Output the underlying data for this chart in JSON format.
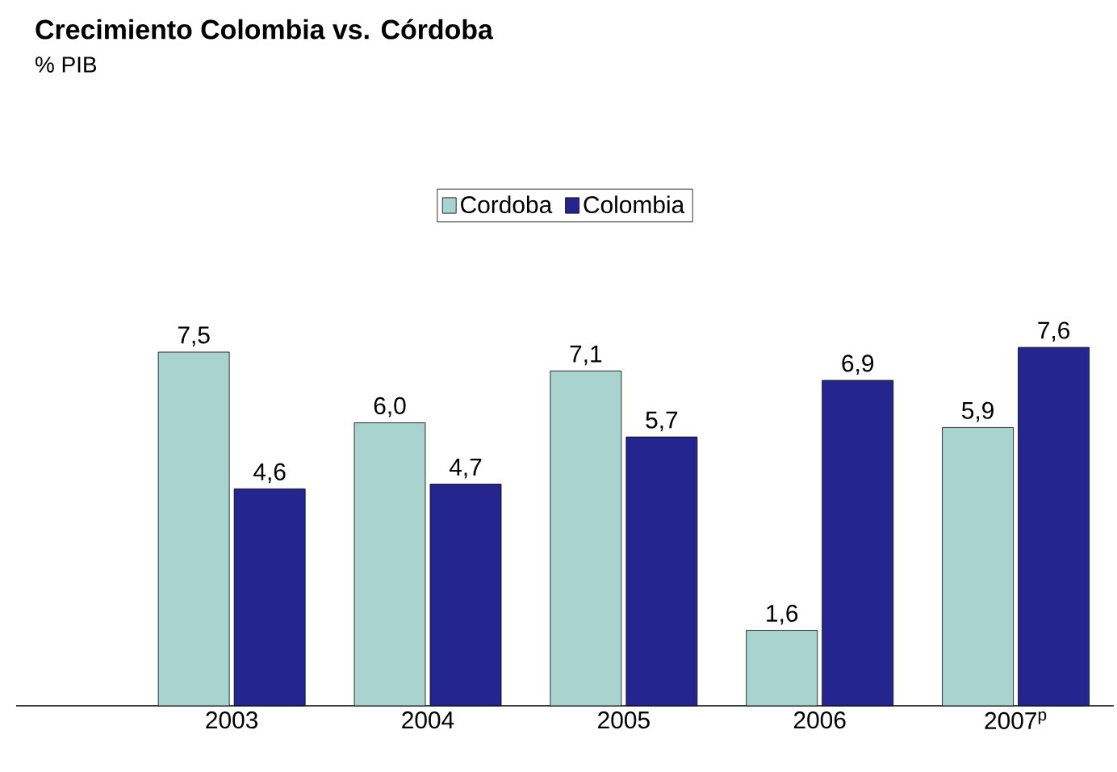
{
  "chart_data": {
    "type": "bar",
    "title": "Crecimiento Colombia vs. Córdoba",
    "subtitle": "% PIB",
    "categories": [
      "2003",
      "2004",
      "2005",
      "2006",
      "2007$^{p}$"
    ],
    "series": [
      {
        "name": "Cordoba",
        "color": "#a9d3cf",
        "values": [
          7.5,
          6.0,
          7.1,
          1.6,
          5.9
        ],
        "value_labels": [
          "7,5",
          "6,0",
          "7,1",
          "1,6",
          "5,9"
        ]
      },
      {
        "name": "Colombia",
        "color": "#25258f",
        "values": [
          4.6,
          4.7,
          5.7,
          6.9,
          7.6
        ],
        "value_labels": [
          "4,6",
          "4,7",
          "5,7",
          "6,9",
          "7,6"
        ]
      }
    ],
    "legend": "top"
  }
}
